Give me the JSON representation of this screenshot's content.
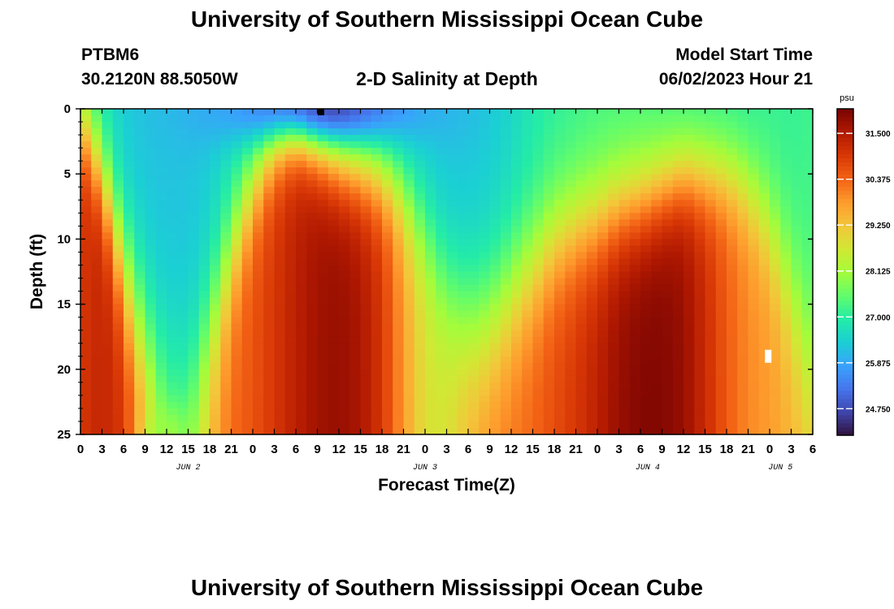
{
  "header": {
    "title": "University of Southern Mississippi Ocean Cube",
    "station_id": "PTBM6",
    "coordinates": "30.2120N  88.5050W",
    "plot_title": "2-D Salinity at Depth",
    "model_start_label": "Model Start Time",
    "model_start_value": "06/02/2023 Hour 21"
  },
  "footer": {
    "title": "University of Southern Mississippi Ocean Cube"
  },
  "chart_data": {
    "type": "heatmap",
    "title": "2-D Salinity at Depth",
    "xlabel": "Forecast Time(Z)",
    "ylabel": "Depth (ft)",
    "x_unit": "hours from model start",
    "xlim": [
      -21,
      81
    ],
    "ylim": [
      0,
      25
    ],
    "y_inverted": true,
    "x_tick_hours": [
      -21,
      -18,
      -15,
      -12,
      -9,
      -6,
      -3,
      0,
      3,
      6,
      9,
      12,
      15,
      18,
      21,
      24,
      27,
      30,
      33,
      36,
      39,
      42,
      45,
      48,
      51,
      54,
      57,
      60,
      63,
      66,
      69,
      72,
      75,
      78,
      81
    ],
    "x_tick_labels": [
      "0",
      "3",
      "6",
      "9",
      "12",
      "15",
      "18",
      "21",
      "0",
      "3",
      "6",
      "9",
      "12",
      "15",
      "18",
      "21",
      "0",
      "3",
      "6",
      "9",
      "12",
      "15",
      "18",
      "21",
      "0",
      "3",
      "6",
      "9",
      "12",
      "15",
      "18",
      "21",
      "0",
      "3",
      "6"
    ],
    "day_labels": [
      {
        "text": "JUN 2",
        "hour": -6
      },
      {
        "text": "JUN 3",
        "hour": 27
      },
      {
        "text": "JUN 4",
        "hour": 58
      },
      {
        "text": "JUN 5",
        "hour": 76.5
      }
    ],
    "y_ticks": [
      0,
      5,
      10,
      15,
      20,
      25
    ],
    "y_tick_labels": [
      "0",
      "5",
      "10",
      "15",
      "20",
      "25"
    ],
    "colorbar": {
      "unit": "psu",
      "ticks": [
        "31.500",
        "30.375",
        "29.250",
        "28.125",
        "27.000",
        "25.875",
        "24.750"
      ],
      "tick_values": [
        31.5,
        30.375,
        29.25,
        28.125,
        27.0,
        25.875,
        24.75
      ],
      "range": [
        24.1,
        32.1
      ],
      "colormap": [
        "#30123b",
        "#4145ab",
        "#4675ed",
        "#39a2fc",
        "#1bcfd4",
        "#24eca6",
        "#61fc6c",
        "#a4fc3b",
        "#d1e834",
        "#f3c63a",
        "#fe9b2d",
        "#f36315",
        "#d93806",
        "#b11901",
        "#7a0402"
      ]
    },
    "surface_fresh": {
      "value": 24.3,
      "hour": 12,
      "depth": 0,
      "spread_hours": 12,
      "spread_depth": 3
    },
    "bottom_dip": {
      "value": 28.0,
      "hour": -9,
      "depth": 25,
      "spread_hours": 3,
      "spread_depth": 2
    },
    "series": [
      {
        "name": "interface_depth_ft",
        "hours": [
          -21,
          -18,
          -15,
          -12,
          -9,
          -6,
          -3,
          0,
          3,
          6,
          9,
          12,
          15,
          18,
          21,
          24,
          27,
          30,
          33,
          36,
          39,
          42,
          45,
          48,
          51,
          54,
          57,
          60,
          63,
          66,
          69,
          72,
          75,
          78,
          81
        ],
        "values": [
          1.0,
          5.0,
          12.0,
          18.0,
          21.5,
          22.0,
          17.0,
          11.0,
          6.0,
          3.0,
          2.0,
          3.0,
          4.0,
          4.5,
          5.0,
          6.5,
          9.5,
          13.5,
          16.0,
          16.0,
          14.0,
          12.0,
          10.0,
          9.0,
          8.5,
          7.5,
          7.0,
          6.0,
          5.0,
          5.0,
          5.0,
          6.0,
          9.0,
          14.0,
          20.0
        ]
      },
      {
        "name": "upper_salinity_psu",
        "hours": [
          -21,
          -18,
          -15,
          -12,
          -9,
          -6,
          -3,
          0,
          3,
          6,
          9,
          12,
          15,
          18,
          21,
          24,
          27,
          30,
          33,
          36,
          39,
          42,
          45,
          48,
          51,
          54,
          57,
          60,
          63,
          66,
          69,
          72,
          75,
          78,
          81
        ],
        "values": [
          27.5,
          26.7,
          26.3,
          26.2,
          26.2,
          26.2,
          26.3,
          26.6,
          26.9,
          27.1,
          27.0,
          26.7,
          26.5,
          26.4,
          26.3,
          26.3,
          26.3,
          26.2,
          26.2,
          26.3,
          26.5,
          26.8,
          27.0,
          27.1,
          27.2,
          27.2,
          27.2,
          27.1,
          27.0,
          27.0,
          27.0,
          27.0,
          27.1,
          27.1,
          27.2
        ]
      },
      {
        "name": "lower_salinity_psu",
        "hours": [
          -21,
          -18,
          -15,
          -12,
          -9,
          -6,
          -3,
          0,
          3,
          6,
          9,
          12,
          15,
          18,
          21,
          24,
          27,
          30,
          33,
          36,
          39,
          42,
          45,
          48,
          51,
          54,
          57,
          60,
          63,
          66,
          69,
          72,
          75,
          78,
          81
        ],
        "values": [
          31.0,
          31.3,
          31.0,
          29.8,
          28.3,
          28.3,
          29.5,
          30.3,
          30.6,
          31.0,
          31.4,
          31.7,
          31.8,
          31.6,
          31.0,
          29.8,
          28.8,
          28.8,
          29.5,
          30.0,
          30.2,
          30.4,
          30.7,
          31.0,
          31.4,
          31.8,
          32.0,
          32.0,
          31.8,
          31.2,
          30.5,
          30.0,
          29.8,
          29.5,
          29.3
        ]
      }
    ],
    "markers": [
      {
        "name": "surface-marker",
        "hour": 12.5,
        "depth": 0.25,
        "color": "#000000"
      },
      {
        "name": "depth-marker",
        "hour": 74.8,
        "depth": 19.0,
        "color": "#ffffff"
      }
    ]
  }
}
